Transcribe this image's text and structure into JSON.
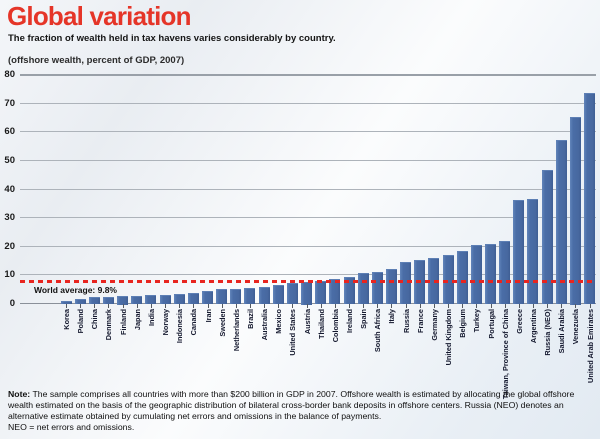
{
  "title": "Global variation",
  "subtitle": "The fraction of wealth held in tax havens varies considerably by country.",
  "axis_unit_label": "(offshore wealth, percent of GDP, 2007)",
  "world_average_label": "World average: 9.8%",
  "note": {
    "label": "Note:",
    "text": " The sample comprises all countries with more than $200 billion in GDP in 2007. Offshore wealth is estimated by allocating the global offshore wealth estimated on the basis of the geographic distribution of bilateral cross-border bank deposits in offshore centers. Russia (NEO) denotes an alternative estimate obtained by cumulating net errors and omissions in the balance of payments.",
    "line2": "NEO = net errors and omissions."
  },
  "colors": {
    "title_red": "#e53528",
    "bar_blue": "#4a6da7",
    "average_line_red": "#e8251f",
    "gridline_gray": "#adb3ba",
    "background_tint": "#e9eff5"
  },
  "chart_data": {
    "type": "bar",
    "title": "Global variation",
    "subtitle": "The fraction of wealth held in tax havens varies considerably by country.",
    "ylabel": "(offshore wealth, percent of GDP, 2007)",
    "xlabel": "",
    "ylim": [
      0,
      80
    ],
    "yticks": [
      0,
      10,
      20,
      30,
      40,
      50,
      60,
      70,
      80
    ],
    "grid": true,
    "world_average": 9.8,
    "categories": [
      "Korea",
      "Poland",
      "China",
      "Denmark",
      "Finland",
      "Japan",
      "India",
      "Norway",
      "Indonesia",
      "Canada",
      "Iran",
      "Sweden",
      "Netherlands",
      "Brazil",
      "Australia",
      "Mexico",
      "United States",
      "Austria",
      "Thailand",
      "Colombia",
      "Ireland",
      "Spain",
      "South Africa",
      "Italy",
      "Russia",
      "France",
      "Germany",
      "United Kingdom",
      "Belgium",
      "Turkey",
      "Portugal",
      "Taiwan, Province of China",
      "Greece",
      "Argentina",
      "Russia (NEO)",
      "Saudi Arabia",
      "Venezuela",
      "United Arab Emirates"
    ],
    "values": [
      1.0,
      1.4,
      2.2,
      2.4,
      2.5,
      2.6,
      2.8,
      3.0,
      3.2,
      3.8,
      4.4,
      4.9,
      5.2,
      5.5,
      5.9,
      6.4,
      7.1,
      7.5,
      7.8,
      8.6,
      9.4,
      10.5,
      10.9,
      12.2,
      14.6,
      15.3,
      16.0,
      17.0,
      18.2,
      20.3,
      20.9,
      21.8,
      36.3,
      36.6,
      46.5,
      57.0,
      65.0,
      73.5
    ]
  }
}
